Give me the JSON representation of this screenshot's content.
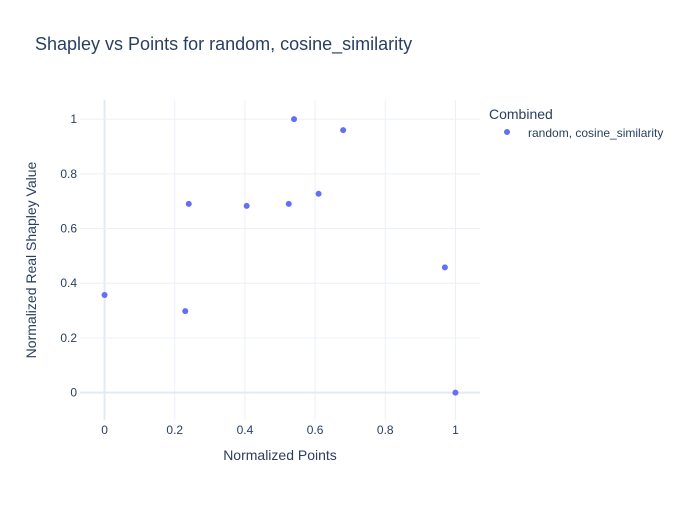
{
  "chart_data": {
    "type": "scatter",
    "title": "Shapley vs Points for random, cosine_similarity",
    "xlabel": "Normalized Points",
    "ylabel": "Normalized Real Shapley Value",
    "xlim": [
      -0.07,
      1.07
    ],
    "ylim": [
      -0.1,
      1.07
    ],
    "xticks": [
      0,
      0.2,
      0.4,
      0.6,
      0.8,
      1
    ],
    "xtick_labels": [
      "0",
      "0.2",
      "0.4",
      "0.6",
      "0.8",
      "1"
    ],
    "yticks": [
      0,
      0.2,
      0.4,
      0.6,
      0.8,
      1
    ],
    "ytick_labels": [
      "0",
      "0.2",
      "0.4",
      "0.6",
      "0.8",
      "1"
    ],
    "grid": true,
    "legend": {
      "title": "Combined",
      "placement": "top-right",
      "entries": [
        "random, cosine_similarity"
      ]
    },
    "series": [
      {
        "name": "random, cosine_similarity",
        "color": "#636efa",
        "x": [
          0,
          0.23,
          0.24,
          0.405,
          0.525,
          0.54,
          0.61,
          0.68,
          0.97,
          1
        ],
        "y": [
          0.357,
          0.298,
          0.69,
          0.683,
          0.69,
          1,
          0.727,
          0.96,
          0.458,
          0
        ]
      }
    ]
  }
}
